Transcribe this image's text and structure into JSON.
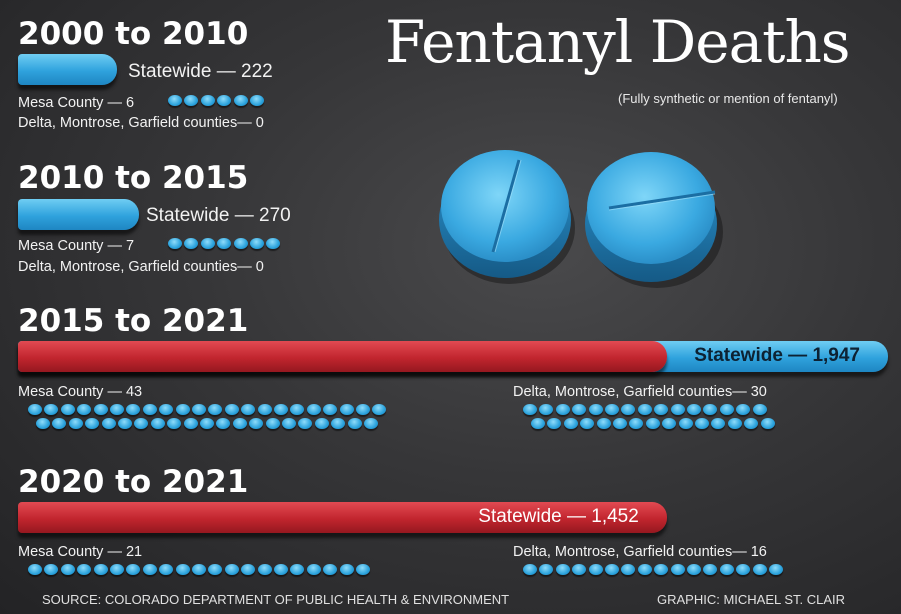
{
  "title": "Fentanyl Deaths",
  "subtitle": "(Fully synthetic or mention of fentanyl)",
  "source": "SOURCE: COLORADO DEPARTMENT OF PUBLIC HEALTH & ENVIRONMENT",
  "credit": "GRAPHIC: MICHAEL ST. CLAIR",
  "colors": {
    "blue": "#2fa2dd",
    "red": "#c1252e",
    "background": "#363638"
  },
  "pill_icons": [
    "pill-icon",
    "pill-icon"
  ],
  "chart_data": {
    "type": "bar",
    "categories": [
      "2000 to 2010",
      "2010 to 2015",
      "2015 to 2021",
      "2020 to 2021"
    ],
    "periods": [
      {
        "period": "2000 to 2010",
        "statewide": 222,
        "statewide_label": "Statewide — 222",
        "mesa": 6,
        "mesa_label": "Mesa County — 6",
        "dmg": 0,
        "dmg_label": "Delta, Montrose, Garfield counties— 0"
      },
      {
        "period": "2010 to 2015",
        "statewide": 270,
        "statewide_label": "Statewide — 270",
        "mesa": 7,
        "mesa_label": "Mesa County — 7",
        "dmg": 0,
        "dmg_label": "Delta, Montrose, Garfield counties— 0"
      },
      {
        "period": "2015 to 2021",
        "statewide": 1947,
        "statewide_label": "Statewide — 1,947",
        "red_portion": 1452,
        "mesa": 43,
        "mesa_label": "Mesa County — 43",
        "dmg": 30,
        "dmg_label": "Delta, Montrose, Garfield counties— 30"
      },
      {
        "period": "2020 to 2021",
        "statewide": 1452,
        "statewide_label": "Statewide — 1,452",
        "mesa": 21,
        "mesa_label": "Mesa County — 21",
        "dmg": 16,
        "dmg_label": "Delta, Montrose, Garfield counties— 16"
      }
    ]
  }
}
